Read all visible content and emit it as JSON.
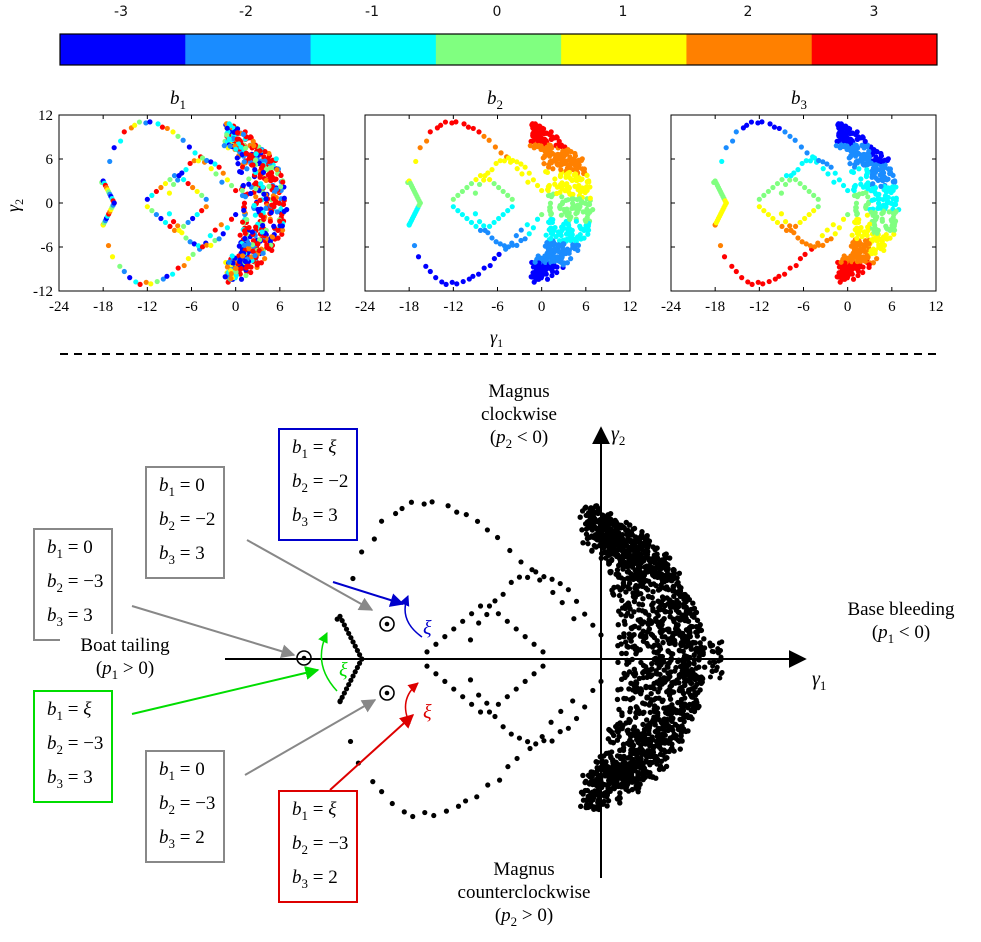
{
  "colorbar": {
    "ticks": [
      "-3",
      "-2",
      "-1",
      "0",
      "1",
      "2",
      "3"
    ],
    "colors": [
      "#0000ff",
      "#1a8cff",
      "#00ffff",
      "#80ff80",
      "#ffff00",
      "#ff8000",
      "#ff0000"
    ]
  },
  "subplots": {
    "titles": [
      {
        "base": "b",
        "sub": "1"
      },
      {
        "base": "b",
        "sub": "2"
      },
      {
        "base": "b",
        "sub": "3"
      }
    ],
    "x_ticks": [
      "-24",
      "-18",
      "-12",
      "-6",
      "0",
      "6",
      "12"
    ],
    "y_ticks": [
      "12",
      "6",
      "0",
      "-6",
      "-12"
    ],
    "xlabel": {
      "base": "γ",
      "sub": "1"
    },
    "ylabel": {
      "base": "γ",
      "sub": "2"
    }
  },
  "axes_main": {
    "x_label": {
      "base": "γ",
      "sub": "1"
    },
    "y_label": {
      "base": "γ",
      "sub": "2"
    }
  },
  "regions": {
    "magnus_cw": {
      "line1": "Magnus",
      "line2": "clockwise",
      "cond_var": "p",
      "cond_sub": "2",
      "cond_rel": " < 0)"
    },
    "magnus_ccw": {
      "line1": "Magnus",
      "line2": "counterclockwise",
      "cond_var": "p",
      "cond_sub": "2",
      "cond_rel": " > 0)"
    },
    "base_bleeding": {
      "line1": "Base bleeding",
      "cond_var": "p",
      "cond_sub": "1",
      "cond_rel": " < 0)"
    },
    "boat_tailing": {
      "line1": "Boat tailing",
      "cond_var": "p",
      "cond_sub": "1",
      "cond_rel": " > 0)"
    }
  },
  "xi_symbol": "ξ",
  "boxes": [
    {
      "id": "blue",
      "color": "#0000cc",
      "rows": [
        [
          "1",
          "ξ"
        ],
        [
          "2",
          "−2"
        ],
        [
          "3",
          "3"
        ]
      ]
    },
    {
      "id": "gray1",
      "color": "#888888",
      "rows": [
        [
          "1",
          "0"
        ],
        [
          "2",
          "−2"
        ],
        [
          "3",
          "3"
        ]
      ]
    },
    {
      "id": "gray2",
      "color": "#888888",
      "rows": [
        [
          "1",
          "0"
        ],
        [
          "2",
          "−3"
        ],
        [
          "3",
          "3"
        ]
      ]
    },
    {
      "id": "green",
      "color": "#00dd00",
      "rows": [
        [
          "1",
          "ξ"
        ],
        [
          "2",
          "−3"
        ],
        [
          "3",
          "3"
        ]
      ]
    },
    {
      "id": "gray3",
      "color": "#888888",
      "rows": [
        [
          "1",
          "0"
        ],
        [
          "2",
          "−3"
        ],
        [
          "3",
          "2"
        ]
      ]
    },
    {
      "id": "red",
      "color": "#dd0000",
      "rows": [
        [
          "1",
          "ξ"
        ],
        [
          "2",
          "−3"
        ],
        [
          "3",
          "2"
        ]
      ]
    }
  ]
}
